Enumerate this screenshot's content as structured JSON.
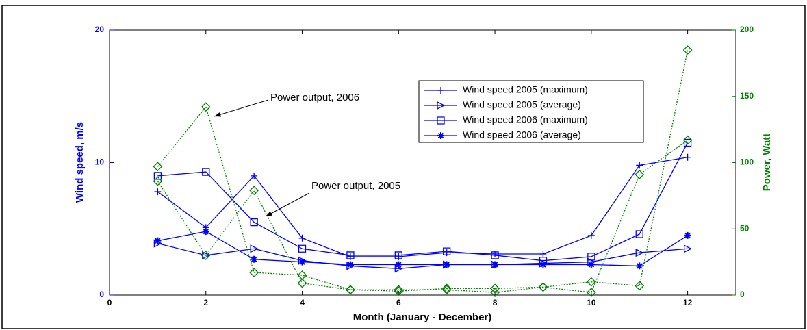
{
  "chart_data": {
    "type": "line",
    "x_label": "Month (January - December)",
    "y_label": "Wind speed, m/s",
    "y2_label": "Power, Watt",
    "x": [
      1,
      2,
      3,
      4,
      5,
      6,
      7,
      8,
      9,
      10,
      11,
      12
    ],
    "xlim": [
      0,
      13
    ],
    "xticks": [
      0,
      2,
      4,
      6,
      8,
      10,
      12
    ],
    "ylim": [
      0,
      20
    ],
    "yticks": [
      0,
      10,
      20
    ],
    "y2lim": [
      0,
      200
    ],
    "y2ticks": [
      0,
      50,
      100,
      150,
      200
    ],
    "series": [
      {
        "name": "Wind speed 2005 (maximum)",
        "color": "#0000ff",
        "marker": "plus",
        "dash": "solid",
        "values": [
          7.8,
          5.1,
          9.0,
          4.3,
          2.9,
          2.9,
          3.2,
          3.1,
          3.1,
          4.5,
          9.8,
          10.4
        ]
      },
      {
        "name": "Wind speed 2005 (average)",
        "color": "#0000ff",
        "marker": "triangle-right",
        "dash": "solid",
        "values": [
          3.9,
          3.0,
          3.5,
          2.6,
          2.2,
          2.0,
          2.3,
          2.3,
          2.4,
          2.5,
          3.2,
          3.5
        ]
      },
      {
        "name": "Wind speed 2006 (maximum)",
        "color": "#0000ff",
        "marker": "square",
        "dash": "solid",
        "values": [
          9.0,
          9.3,
          5.5,
          3.5,
          3.0,
          3.0,
          3.3,
          3.0,
          2.6,
          2.9,
          4.6,
          11.5
        ]
      },
      {
        "name": "Wind speed 2006 (average)",
        "color": "#0000ff",
        "marker": "star",
        "dash": "solid",
        "values": [
          4.1,
          4.8,
          2.7,
          2.5,
          2.3,
          2.3,
          2.3,
          2.3,
          2.3,
          2.3,
          2.2,
          4.5
        ]
      },
      {
        "color": "#008000",
        "marker": "diamond",
        "dash": "dotted",
        "axis": "y2",
        "values": [
          97,
          142,
          17,
          15,
          4,
          3,
          5,
          5,
          6,
          10,
          7,
          185
        ]
      },
      {
        "color": "#008000",
        "marker": "diamond",
        "dash": "dotted",
        "axis": "y2",
        "values": [
          86,
          30,
          79,
          9,
          4,
          4,
          4,
          2,
          6,
          2,
          91,
          117
        ]
      }
    ],
    "annotations": [
      "Power output, 2006",
      "Power output, 2005"
    ]
  }
}
